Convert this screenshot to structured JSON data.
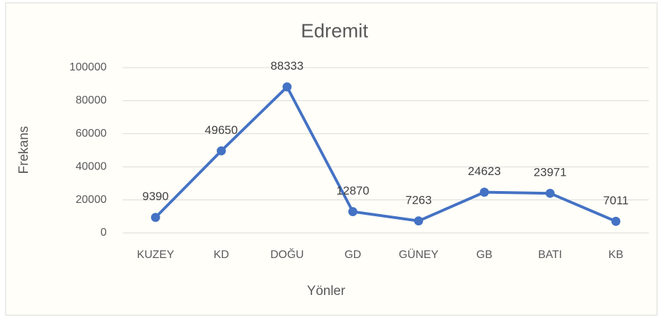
{
  "chart_data": {
    "type": "line",
    "title": "Edremit",
    "x_label": "Yönler",
    "y_label": "Frekans",
    "categories": [
      "KUZEY",
      "KD",
      "DOĞU",
      "GD",
      "GÜNEY",
      "GB",
      "BATI",
      "KB"
    ],
    "series": [
      {
        "name": "Frekans",
        "color": "#4472c4",
        "values": [
          9390,
          49650,
          88333,
          12870,
          7263,
          24623,
          23971,
          7011
        ]
      }
    ],
    "ylim": [
      0,
      100000
    ],
    "yticks": [
      0,
      20000,
      40000,
      60000,
      80000,
      100000
    ],
    "grid": true
  }
}
